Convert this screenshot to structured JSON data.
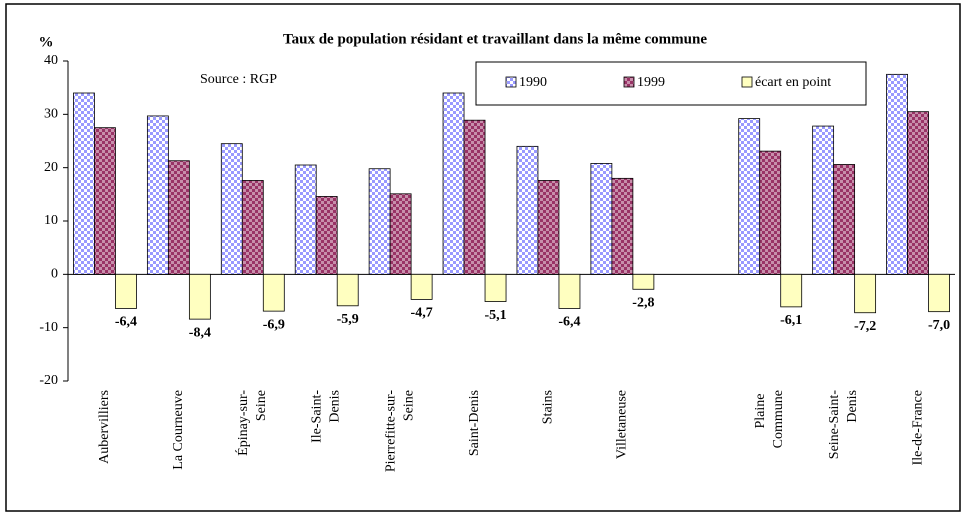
{
  "chart_data": {
    "type": "bar",
    "title": "Taux de population résidant et travaillant dans la même commune",
    "ylabel": "%",
    "annotation": "Source : RGP",
    "categories": [
      "Aubervilliers",
      "La Courneuve",
      "Épinay-sur-Seine",
      "Ile-Saint-Denis",
      "Pierrefitte-sur-Seine",
      "Saint-Denis",
      "Stains",
      "Villetaneuse",
      null,
      "Plaine Commune",
      "Seine-Saint-Denis",
      "Ile-de-France"
    ],
    "series": [
      {
        "name": "1990",
        "color": "#9999ff",
        "values": [
          34,
          29.7,
          24.5,
          20.5,
          19.8,
          34,
          24,
          20.8,
          null,
          29.2,
          27.8,
          37.5
        ]
      },
      {
        "name": "1999",
        "color": "#993366",
        "values": [
          27.5,
          21.3,
          17.6,
          14.6,
          15.1,
          28.9,
          17.6,
          18,
          null,
          23.1,
          20.6,
          30.5
        ]
      },
      {
        "name": "écart en point",
        "color": "#ffffc0",
        "values": [
          -6.4,
          -8.4,
          -6.9,
          -5.9,
          -4.7,
          -5.1,
          -6.4,
          -2.8,
          null,
          -6.1,
          -7.2,
          -7.0
        ],
        "value_labels": [
          "-6,4",
          "-8,4",
          "-6,9",
          "-5,9",
          "-4,7",
          "-5,1",
          "-6,4",
          "-2,8",
          null,
          "-6,1",
          "-7,2",
          "-7,0"
        ]
      }
    ],
    "ylim": [
      -20,
      40
    ],
    "yticks": [
      -20,
      -10,
      0,
      10,
      20,
      30,
      40
    ]
  }
}
